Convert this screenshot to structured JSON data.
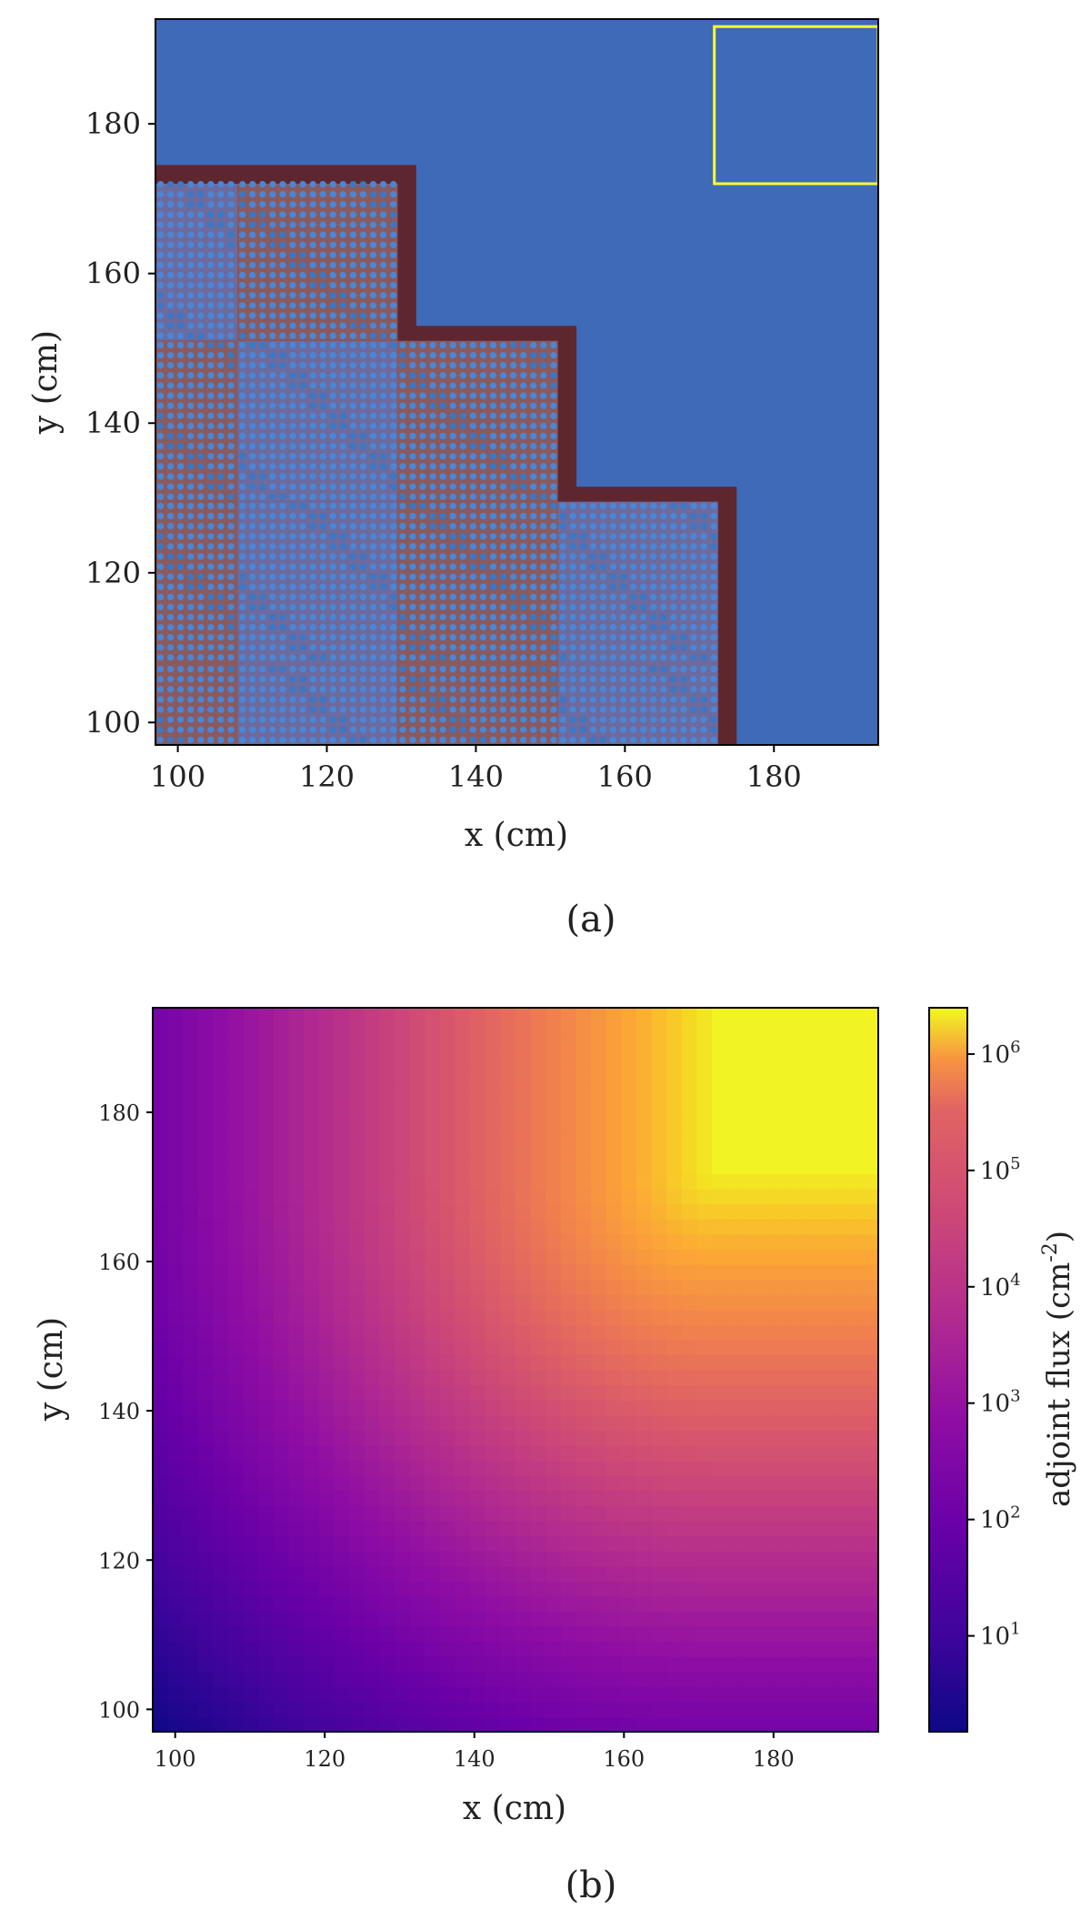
{
  "chart_data": [
    {
      "panel": "a",
      "type": "geometry-map",
      "caption": "(a)",
      "xlabel": "x (cm)",
      "ylabel": "y (cm)",
      "xlim": [
        97,
        194
      ],
      "ylim": [
        97,
        194
      ],
      "xticks": [
        100,
        120,
        140,
        160,
        180
      ],
      "yticks": [
        100,
        120,
        140,
        160,
        180
      ],
      "regions": {
        "background_color": "#3f6ab7",
        "reflector_wall_color": "#5e2730",
        "assembly_colors": [
          "#8a5a5e",
          "#3a78c6",
          "#6d6a9e"
        ],
        "detector_box": {
          "x": [
            172,
            194
          ],
          "y": [
            172,
            193
          ],
          "color": "#ffff33"
        }
      },
      "core_outline_steps": [
        {
          "x_max": 129.5,
          "y_range": [
            151,
            174
          ]
        },
        {
          "x_max": 151,
          "y_range": [
            129.5,
            151
          ]
        },
        {
          "x_max": 172.5,
          "y_range": [
            97,
            129.5
          ]
        }
      ]
    },
    {
      "panel": "b",
      "type": "heatmap",
      "caption": "(b)",
      "xlabel": "x (cm)",
      "ylabel": "y (cm)",
      "xlim": [
        97,
        194
      ],
      "ylim": [
        97,
        194
      ],
      "xticks": [
        100,
        120,
        140,
        160,
        180
      ],
      "yticks": [
        100,
        120,
        140,
        160,
        180
      ],
      "colormap": "plasma",
      "colorbar": {
        "label": "adjoint flux (cm",
        "label_sup": "-2",
        "label_end": ")",
        "scale": "log",
        "range": [
          1.5,
          2500000
        ],
        "ticks": [
          {
            "base": "10",
            "exp": "1",
            "value": 10
          },
          {
            "base": "10",
            "exp": "2",
            "value": 100
          },
          {
            "base": "10",
            "exp": "3",
            "value": 1000
          },
          {
            "base": "10",
            "exp": "4",
            "value": 10000
          },
          {
            "base": "10",
            "exp": "5",
            "value": 100000
          },
          {
            "base": "10",
            "exp": "6",
            "value": 1000000
          }
        ]
      },
      "peak_region": {
        "x": [
          172,
          194
        ],
        "y": [
          172,
          193
        ],
        "log10_value": 6.3
      },
      "min_corner": {
        "x": 97,
        "y": 97,
        "log10_value": 0.2
      }
    }
  ]
}
